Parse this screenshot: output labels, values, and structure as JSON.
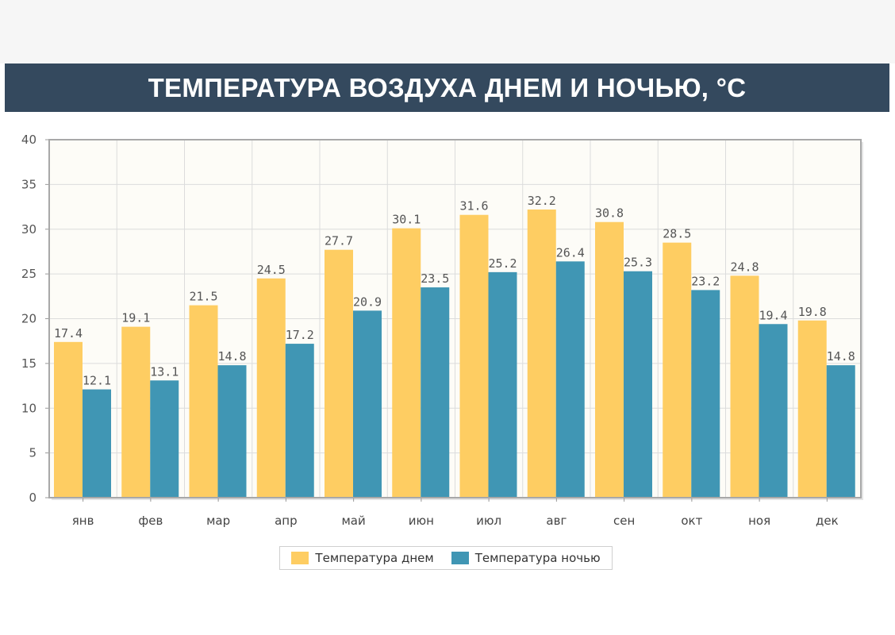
{
  "header": {
    "title": "ТЕМПЕРАТУРА ВОЗДУХА ДНЕМ И НОЧЬЮ, °C"
  },
  "colors": {
    "day": "#fecd62",
    "night": "#4096b4",
    "title_bg": "#34495e",
    "plot_bg": "#fdfcf7",
    "grid": "#dcdcdc"
  },
  "chart_data": {
    "type": "bar",
    "title": "ТЕМПЕРАТУРА ВОЗДУХА ДНЕМ И НОЧЬЮ, °C",
    "xlabel": "",
    "ylabel": "",
    "ylim": [
      0,
      40
    ],
    "yticks": [
      0,
      5,
      10,
      15,
      20,
      25,
      30,
      35,
      40
    ],
    "grid": true,
    "legend": "bottom-center",
    "categories": [
      "янв",
      "фев",
      "мар",
      "апр",
      "май",
      "июн",
      "июл",
      "авг",
      "сен",
      "окт",
      "ноя",
      "дек"
    ],
    "series": [
      {
        "name": "Температура днем",
        "color": "#fecd62",
        "values": [
          17.4,
          19.1,
          21.5,
          24.5,
          27.7,
          30.1,
          31.6,
          32.2,
          30.8,
          28.5,
          24.8,
          19.8
        ]
      },
      {
        "name": "Температура ночью",
        "color": "#4096b4",
        "values": [
          12.1,
          13.1,
          14.8,
          17.2,
          20.9,
          23.5,
          25.2,
          26.4,
          25.3,
          23.2,
          19.4,
          14.8
        ]
      }
    ]
  }
}
